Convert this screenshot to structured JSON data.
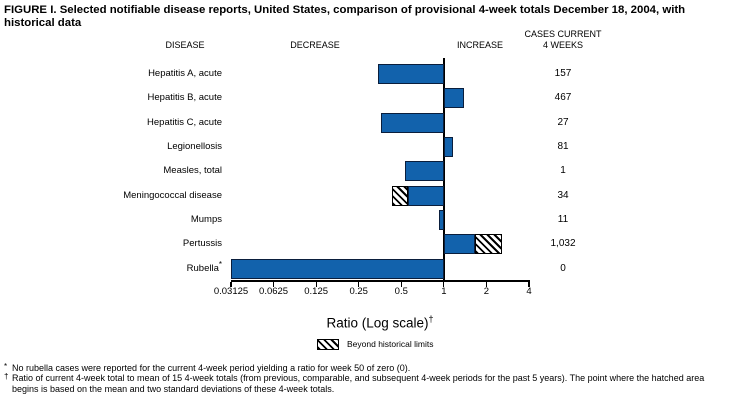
{
  "figure": {
    "title": "FIGURE I. Selected notifiable disease reports, United States, comparison of provisional 4-week totals December 18, 2004, with historical data"
  },
  "headers": {
    "disease": "DISEASE",
    "decrease": "DECREASE",
    "increase": "INCREASE",
    "cases_line1": "CASES CURRENT",
    "cases_line2": "4 WEEKS"
  },
  "colors": {
    "bar": "#1262AC",
    "bar_border": "#0A1E3C",
    "axis": "#000000"
  },
  "chart_data": {
    "type": "bar",
    "orientation": "horizontal",
    "scale": "log2",
    "xlabel": "Ratio (Log scale)",
    "xlabel_footnote_marker": "†",
    "xlim": [
      0.03125,
      4
    ],
    "baseline_ratio": 1,
    "ticks": [
      "0.03125",
      "0.0625",
      "0.125",
      "0.25",
      "0.5",
      "1",
      "2",
      "4"
    ],
    "legend": {
      "swatch": "diagonal-hatch",
      "label": "Beyond historical limits"
    },
    "rows": [
      {
        "disease": "Hepatitis A, acute",
        "marker": "",
        "ratio": 0.34,
        "cases": "157"
      },
      {
        "disease": "Hepatitis B, acute",
        "marker": "",
        "ratio": 1.39,
        "cases": "467"
      },
      {
        "disease": "Hepatitis C, acute",
        "marker": "",
        "ratio": 0.36,
        "cases": "27"
      },
      {
        "disease": "Legionellosis",
        "marker": "",
        "ratio": 1.17,
        "cases": "81"
      },
      {
        "disease": "Measles, total",
        "marker": "",
        "ratio": 0.53,
        "cases": "1"
      },
      {
        "disease": "Meningococcal disease",
        "marker": "",
        "ratio": 0.43,
        "cases": "34",
        "beyond_limit_from": 0.56
      },
      {
        "disease": "Mumps",
        "marker": "",
        "ratio": 0.92,
        "cases": "11"
      },
      {
        "disease": "Pertussis",
        "marker": "",
        "ratio": 2.58,
        "cases": "1,032",
        "beyond_limit_from": 1.66
      },
      {
        "disease": "Rubella",
        "marker": "*",
        "ratio": 0.03125,
        "cases": "0"
      }
    ]
  },
  "footnotes": [
    {
      "marker": "*",
      "text": "No rubella cases were reported for the current 4-week period yielding a ratio for week 50 of zero (0)."
    },
    {
      "marker": "†",
      "text": "Ratio of current 4-week total to mean of 15 4-week totals (from previous, comparable, and subsequent 4-week periods for the past 5 years). The point where the hatched area begins is based on the mean and two standard deviations of these 4-week totals."
    }
  ]
}
